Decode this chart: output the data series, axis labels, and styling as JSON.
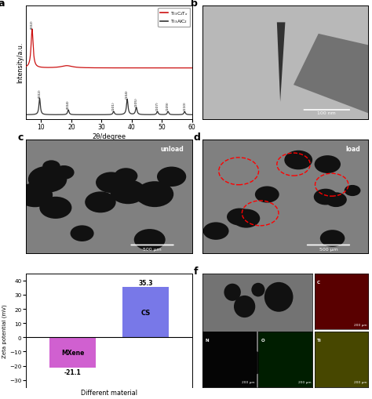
{
  "xrd": {
    "xlim": [
      5,
      60
    ],
    "xlabel": "2θ/degree",
    "ylabel": "Intensity/a.u.",
    "mxene_color": "#cc1111",
    "max_color": "#333333",
    "legend_mxene": "Ti₃C₂Tₓ",
    "legend_max": "Ti₃AlC₂",
    "xticks": [
      10,
      20,
      30,
      40,
      50,
      60
    ],
    "mxene_peak_x": 7.0,
    "mxene_peak_label": "(002)",
    "max_peaks": [
      {
        "x": 9.5,
        "label": "(002)",
        "A": 0.4,
        "gamma": 0.28
      },
      {
        "x": 19.0,
        "label": "(004)",
        "A": 0.12,
        "gamma": 0.28
      },
      {
        "x": 34.0,
        "label": "(101)",
        "A": 0.08,
        "gamma": 0.28
      },
      {
        "x": 38.5,
        "label": "(104)",
        "A": 0.38,
        "gamma": 0.3
      },
      {
        "x": 41.5,
        "label": "(105)",
        "A": 0.18,
        "gamma": 0.3
      },
      {
        "x": 48.5,
        "label": "(107)",
        "A": 0.08,
        "gamma": 0.28
      },
      {
        "x": 52.0,
        "label": "(109)",
        "A": 0.08,
        "gamma": 0.28
      },
      {
        "x": 57.5,
        "label": "(110)",
        "A": 0.08,
        "gamma": 0.28
      }
    ]
  },
  "zeta": {
    "mxene_val": -21.1,
    "cs_val": 35.3,
    "mxene_color": "#d060d0",
    "cs_color": "#7878e8",
    "xlabel": "Different material",
    "ylabel": "Zeta potential (mV)",
    "ylim": [
      -35,
      45
    ],
    "yticks": [
      -30,
      -20,
      -10,
      0,
      10,
      20,
      30,
      40
    ]
  },
  "panel_b_gray": 0.72,
  "panel_c_gray": 0.5,
  "panel_d_gray": 0.5,
  "panel_f_gray": 0.5,
  "panel_f_c_color": [
    0.4,
    0.0,
    0.0
  ],
  "panel_f_f_color": [
    0.0,
    0.0,
    0.15
  ],
  "panel_f_n_color": [
    0.02,
    0.02,
    0.02
  ],
  "panel_f_o_color": [
    0.0,
    0.12,
    0.0
  ],
  "panel_f_ti_color": [
    0.3,
    0.3,
    0.0
  ]
}
